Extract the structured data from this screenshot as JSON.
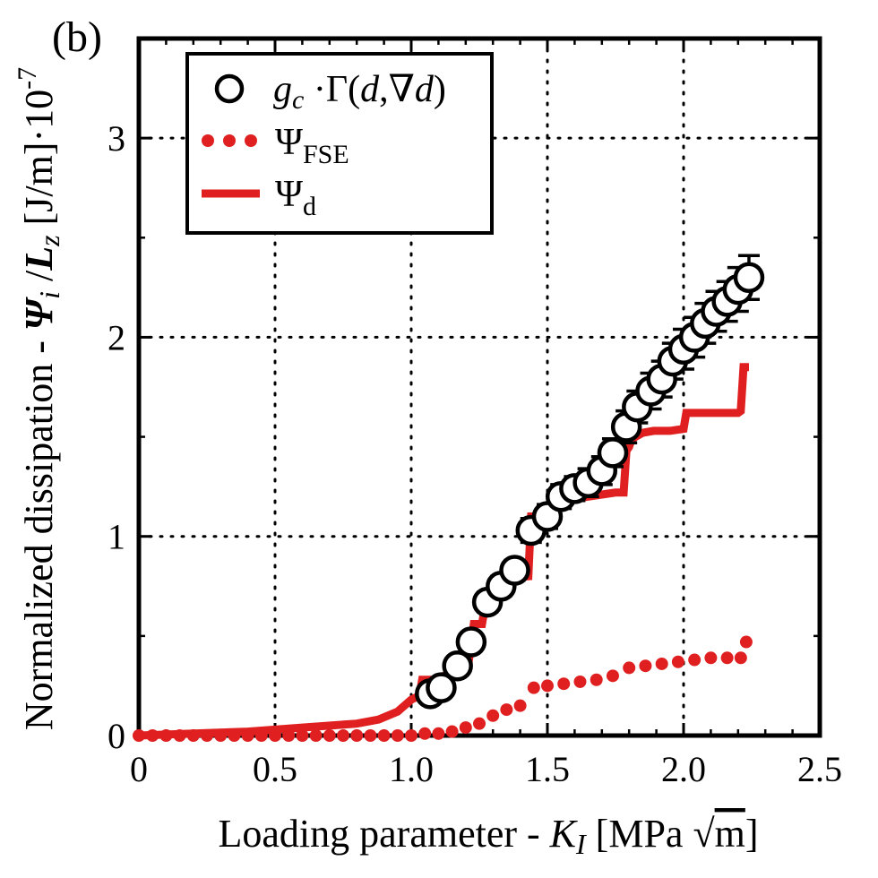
{
  "chart_data": {
    "type": "line",
    "panel_label": "(b)",
    "xlabel": "Loading parameter - K_I [MPa √m]",
    "xlabel_parts": {
      "prefix": "Loading parameter - ",
      "sym": "K",
      "sub": "I",
      "unit_open": " [MPa ",
      "sqrt": "√",
      "radicand": "m",
      "unit_close": "]"
    },
    "ylabel": "Normalized dissipation - Ψ_i /L_z [J/m]·10^-7",
    "ylabel_parts": {
      "prefix": "Normalized dissipation - ",
      "psi": "Ψ",
      "psi_sub": "i",
      "sep": " /",
      "lz": "L",
      "lz_sub": "z",
      "unit": " [J/m]·10",
      "exp": "-7"
    },
    "xlim": [
      0,
      2.5
    ],
    "ylim": [
      0,
      3.5
    ],
    "xticks": [
      0,
      0.5,
      1.0,
      1.5,
      2.0,
      2.5
    ],
    "xtick_labels": [
      "0",
      "0.5",
      "1.0",
      "1.5",
      "2.0",
      "2.5"
    ],
    "yticks": [
      0,
      1,
      2,
      3
    ],
    "ytick_labels": [
      "0",
      "1",
      "2",
      "3"
    ],
    "grid": true,
    "legend_position": "top-left",
    "legend": [
      {
        "parts": {
          "g": "g",
          "gsub": "c",
          "rest": " ·Γ(",
          "d1": "d",
          "comma": ",∇",
          "d2": "d",
          "close": ")"
        }
      },
      {
        "parts": {
          "sym": "Ψ",
          "sub": "FSE"
        }
      },
      {
        "parts": {
          "sym": "Ψ",
          "sub": "d"
        }
      }
    ],
    "series": [
      {
        "name": "g_c ·Γ(d,∇d)",
        "style": "open-circle-errorbar",
        "color": "#000000",
        "x": [
          1.07,
          1.11,
          1.17,
          1.22,
          1.28,
          1.33,
          1.38,
          1.44,
          1.5,
          1.55,
          1.6,
          1.65,
          1.7,
          1.74,
          1.79,
          1.83,
          1.88,
          1.92,
          1.96,
          2.0,
          2.04,
          2.08,
          2.12,
          2.16,
          2.2,
          2.24
        ],
        "y": [
          0.21,
          0.24,
          0.35,
          0.47,
          0.67,
          0.75,
          0.83,
          1.03,
          1.1,
          1.2,
          1.24,
          1.27,
          1.33,
          1.42,
          1.55,
          1.65,
          1.73,
          1.79,
          1.88,
          1.94,
          2.0,
          2.07,
          2.13,
          2.18,
          2.24,
          2.3
        ],
        "err": [
          0.03,
          0.03,
          0.04,
          0.04,
          0.05,
          0.05,
          0.05,
          0.06,
          0.06,
          0.06,
          0.06,
          0.07,
          0.07,
          0.07,
          0.08,
          0.08,
          0.09,
          0.09,
          0.09,
          0.1,
          0.1,
          0.1,
          0.1,
          0.1,
          0.11,
          0.11
        ]
      },
      {
        "name": "Ψ_FSE",
        "style": "dots",
        "color": "#e02020",
        "x": [
          0.0,
          0.05,
          0.1,
          0.15,
          0.2,
          0.25,
          0.3,
          0.35,
          0.4,
          0.45,
          0.5,
          0.55,
          0.6,
          0.65,
          0.7,
          0.75,
          0.8,
          0.85,
          0.9,
          0.95,
          1.0,
          1.05,
          1.1,
          1.15,
          1.2,
          1.25,
          1.3,
          1.35,
          1.4,
          1.45,
          1.5,
          1.56,
          1.62,
          1.68,
          1.74,
          1.8,
          1.86,
          1.92,
          1.98,
          2.04,
          2.1,
          2.16,
          2.21,
          2.23
        ],
        "y": [
          0.0,
          0.0,
          0.0,
          0.0,
          0.0,
          0.0,
          0.0,
          0.0,
          0.0,
          0.0,
          0.0,
          0.0,
          0.0,
          0.0,
          0.0,
          0.0,
          0.0,
          0.0,
          0.0,
          0.0,
          0.0,
          0.01,
          0.01,
          0.02,
          0.04,
          0.06,
          0.1,
          0.13,
          0.15,
          0.24,
          0.25,
          0.26,
          0.27,
          0.28,
          0.3,
          0.34,
          0.35,
          0.36,
          0.37,
          0.38,
          0.39,
          0.39,
          0.39,
          0.47
        ]
      },
      {
        "name": "Ψ_d",
        "style": "solid",
        "color": "#e02020",
        "x": [
          0.0,
          0.2,
          0.4,
          0.6,
          0.8,
          0.88,
          0.95,
          1.0,
          1.03,
          1.04,
          1.1,
          1.12,
          1.15,
          1.17,
          1.21,
          1.23,
          1.26,
          1.28,
          1.3,
          1.32,
          1.34,
          1.43,
          1.44,
          1.46,
          1.48,
          1.5,
          1.52,
          1.6,
          1.7,
          1.75,
          1.78,
          1.79,
          1.8,
          1.81,
          1.85,
          1.89,
          1.95,
          2.0,
          2.01,
          2.1,
          2.2,
          2.21,
          2.22,
          2.24
        ],
        "y": [
          0.0,
          0.01,
          0.02,
          0.04,
          0.06,
          0.08,
          0.12,
          0.18,
          0.2,
          0.28,
          0.28,
          0.3,
          0.31,
          0.34,
          0.36,
          0.56,
          0.56,
          0.72,
          0.72,
          0.78,
          0.79,
          0.8,
          1.1,
          1.1,
          1.11,
          1.13,
          1.14,
          1.19,
          1.21,
          1.22,
          1.22,
          1.43,
          1.45,
          1.49,
          1.52,
          1.53,
          1.53,
          1.54,
          1.62,
          1.62,
          1.62,
          1.63,
          1.85,
          1.85
        ]
      }
    ]
  }
}
